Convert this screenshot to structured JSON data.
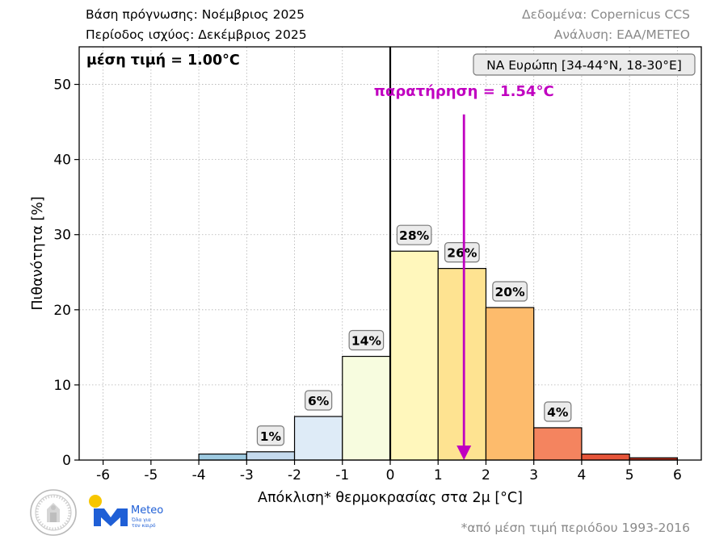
{
  "header": {
    "forecast_base": "Βάση πρόγνωσης: Νοέμβριος 2025",
    "valid_period": "Περίοδος ισχύος: Δεκέμβριος 2025",
    "data_source": "Δεδομένα: Copernicus CCS",
    "analysis": "Ανάλυση: ΕΑΑ/ΜΕΤΕΟ"
  },
  "footnote": "*από μέση τιμή περιόδου 1993-2016",
  "logo": {
    "brand": "Meteo",
    "tagline_1": "Όλα για",
    "tagline_2": "τον καιρό",
    "brand_color": "#1f5fd6",
    "sun_color": "#f7c600"
  },
  "chart_data": {
    "type": "bar",
    "xlabel": "Απόκλιση* θερμοκρασίας στα 2μ [°C]",
    "ylabel": "Πιθανότητα [%]",
    "xlim": [
      -6.5,
      6.5
    ],
    "ylim": [
      0,
      55
    ],
    "xticks": [
      "-6",
      "-5",
      "-4",
      "-3",
      "-2",
      "-1",
      "0",
      "1",
      "2",
      "3",
      "4",
      "5",
      "6"
    ],
    "yticks": [
      "0",
      "10",
      "20",
      "30",
      "40",
      "50"
    ],
    "grid": true,
    "bins": [
      {
        "x0": -4,
        "x1": -3,
        "value": 0.8,
        "color": "#9ecae1",
        "label": ""
      },
      {
        "x0": -3,
        "x1": -2,
        "value": 1.1,
        "color": "#c6dbef",
        "label": "1%"
      },
      {
        "x0": -2,
        "x1": -1,
        "value": 5.8,
        "color": "#deebf7",
        "label": "6%"
      },
      {
        "x0": -1,
        "x1": 0,
        "value": 13.8,
        "color": "#f7fcdf",
        "label": "14%"
      },
      {
        "x0": 0,
        "x1": 1,
        "value": 27.8,
        "color": "#fff7bc",
        "label": "28%"
      },
      {
        "x0": 1,
        "x1": 2,
        "value": 25.5,
        "color": "#fee391",
        "label": "26%"
      },
      {
        "x0": 2,
        "x1": 3,
        "value": 20.3,
        "color": "#fdbb6c",
        "label": "20%"
      },
      {
        "x0": 3,
        "x1": 4,
        "value": 4.3,
        "color": "#f4845f",
        "label": "4%"
      },
      {
        "x0": 4,
        "x1": 5,
        "value": 0.8,
        "color": "#e6553a",
        "label": ""
      },
      {
        "x0": 5,
        "x1": 6,
        "value": 0.3,
        "color": "#c8341f",
        "label": ""
      }
    ],
    "mean_label": "μέση τιμή = 1.00°C",
    "region_label": "ΝΑ Ευρώπη [34-44°N, 18-30°E]",
    "observation": {
      "label": "παρατήρηση = 1.54°C",
      "value": 1.54,
      "arrow_top": 46,
      "color": "#c000c0"
    },
    "zero_line": 0
  }
}
